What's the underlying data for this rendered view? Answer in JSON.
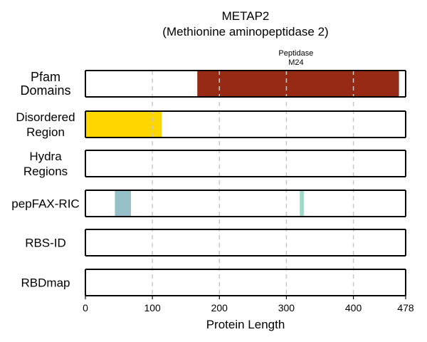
{
  "chart_data": {
    "type": "bar",
    "title": "METAP2",
    "subtitle": "(Methionine aminopeptidase 2)",
    "xlabel": "Protein Length",
    "xlim": [
      0,
      478
    ],
    "xticks": [
      0,
      100,
      200,
      300,
      400,
      478
    ],
    "grid": "vertical dashed",
    "tracks": [
      {
        "label_lines": [
          "Pfam",
          "Domains"
        ],
        "segments": [
          {
            "start": 167,
            "end": 468,
            "color": "#962a14",
            "annotation_lines": [
              "Peptidase",
              "M24"
            ]
          }
        ]
      },
      {
        "label_lines": [
          "Disordered",
          "Region"
        ],
        "segments": [
          {
            "start": 1,
            "end": 114,
            "color": "#ffd700"
          }
        ]
      },
      {
        "label_lines": [
          "Hydra",
          "Regions"
        ],
        "segments": []
      },
      {
        "label_lines": [
          "pepFAX-RIC"
        ],
        "segments": [
          {
            "start": 44,
            "end": 68,
            "color": "#95c0c7"
          },
          {
            "start": 320,
            "end": 326,
            "color": "#9bdbc3"
          }
        ]
      },
      {
        "label_lines": [
          "RBS-ID"
        ],
        "segments": []
      },
      {
        "label_lines": [
          "RBDmap"
        ],
        "segments": []
      }
    ]
  }
}
